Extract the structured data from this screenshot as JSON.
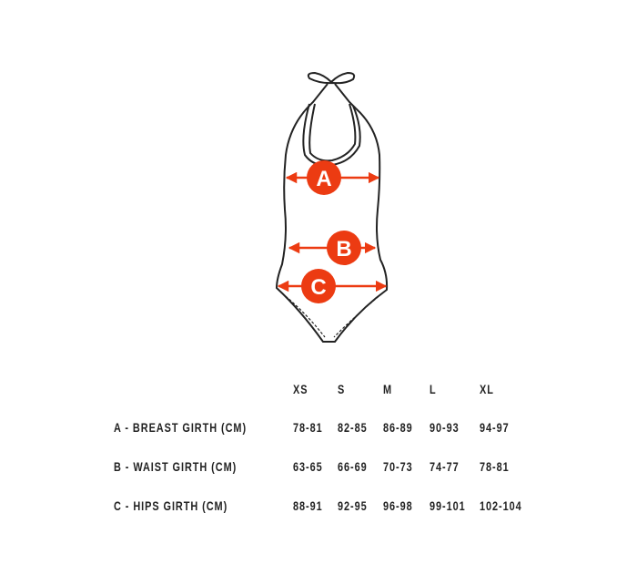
{
  "diagram": {
    "accent_color": "#ec3b12",
    "markers": [
      "A",
      "B",
      "C"
    ]
  },
  "size_table": {
    "sizes": [
      "XS",
      "S",
      "M",
      "L",
      "XL"
    ],
    "rows": [
      {
        "label": "A - BREAST GIRTH (CM)",
        "values": [
          "78-81",
          "82-85",
          "86-89",
          "90-93",
          "94-97"
        ]
      },
      {
        "label": "B - WAIST GIRTH (CM)",
        "values": [
          "63-65",
          "66-69",
          "70-73",
          "74-77",
          "78-81"
        ]
      },
      {
        "label": "C - HIPS GIRTH (CM)",
        "values": [
          "88-91",
          "92-95",
          "96-98",
          "99-101",
          "102-104"
        ]
      }
    ]
  }
}
